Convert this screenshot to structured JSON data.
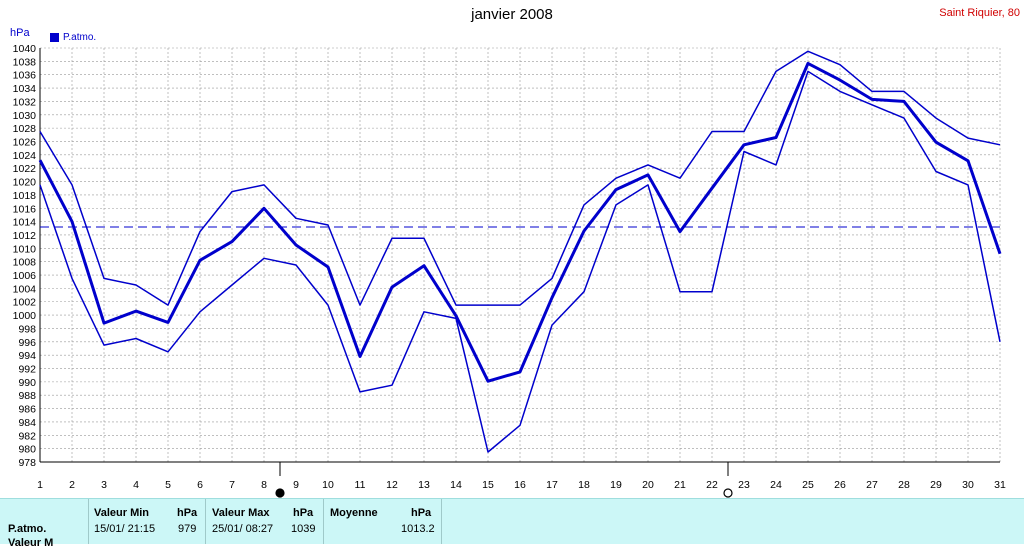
{
  "chart_data": {
    "type": "line",
    "title": "janvier 2008",
    "station": "Saint Riquier, 80",
    "ylabel": "hPa",
    "legend": "P.atmo.",
    "x": [
      1,
      2,
      3,
      4,
      5,
      6,
      7,
      8,
      9,
      10,
      11,
      12,
      13,
      14,
      15,
      16,
      17,
      18,
      19,
      20,
      21,
      22,
      23,
      24,
      25,
      26,
      27,
      28,
      29,
      30,
      31
    ],
    "ylim": [
      978,
      1040
    ],
    "ytick_step": 2,
    "reference_line": 1013.2,
    "series": [
      {
        "name": "max",
        "values": [
          1027.5,
          1019.5,
          1005.5,
          1004.5,
          1001.5,
          1012.5,
          1018.5,
          1019.5,
          1014.5,
          1013.5,
          1001.5,
          1011.5,
          1011.5,
          1001.5,
          1001.5,
          1001.5,
          1005.5,
          1016.5,
          1020.5,
          1022.5,
          1020.5,
          1027.5,
          1027.5,
          1036.5,
          1039.5,
          1037.5,
          1033.5,
          1033.5,
          1029.5,
          1026.5,
          1025.5
        ]
      },
      {
        "name": "mean",
        "values": [
          1023.2,
          1014.0,
          998.8,
          1000.6,
          998.9,
          1008.2,
          1011.0,
          1016.0,
          1010.5,
          1007.2,
          993.8,
          1004.2,
          1007.4,
          999.9,
          990.1,
          991.5,
          1002.6,
          1012.6,
          1018.8,
          1021.0,
          1012.5,
          1019.0,
          1025.5,
          1026.6,
          1037.7,
          1035.2,
          1032.3,
          1032.0,
          1025.9,
          1023.1,
          1009.2
        ]
      },
      {
        "name": "min",
        "values": [
          1019.5,
          1005.5,
          995.5,
          996.5,
          994.5,
          1000.5,
          1004.5,
          1008.5,
          1007.5,
          1001.5,
          988.5,
          989.5,
          1000.5,
          999.5,
          979.5,
          983.5,
          998.5,
          1003.5,
          1016.5,
          1019.5,
          1003.5,
          1003.5,
          1024.5,
          1022.5,
          1036.5,
          1033.5,
          1031.5,
          1029.5,
          1021.5,
          1019.5,
          996.0
        ]
      }
    ],
    "markers": [
      {
        "x": 8.5,
        "symbol": "●"
      },
      {
        "x": 22.5,
        "symbol": "○"
      }
    ],
    "grid": true
  },
  "stats": {
    "row1_label": "P.atmo.",
    "row2_label": "Valeur M",
    "min_header": "Valeur Min",
    "min_unit": "hPa",
    "min_date": "15/01/  21:15",
    "min_value": "979",
    "max_header": "Valeur Max",
    "max_unit": "hPa",
    "max_date": "25/01/  08:27",
    "max_value": "1039",
    "mean_header": "Moyenne",
    "mean_unit": "hPa",
    "mean_value": "1013.2"
  },
  "colors": {
    "series": "#0000cc",
    "grid": "#999999",
    "station": "#d00000",
    "footer": "#ccf7f7"
  }
}
